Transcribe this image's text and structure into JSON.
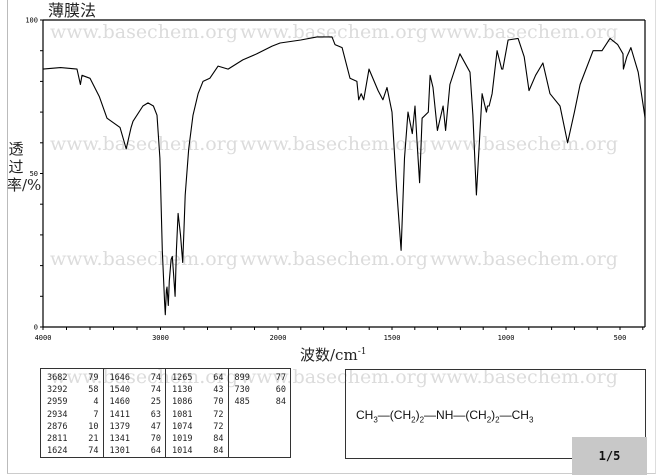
{
  "title": "薄膜法",
  "watermark": "www.basechem.org",
  "chart_data": {
    "type": "line",
    "title": "薄膜法",
    "xlabel": "波数/cm",
    "xlabel_sup": "-1",
    "ylabel": "透过率/%",
    "xlim": [
      4000,
      390
    ],
    "ylim": [
      0,
      100
    ],
    "x_scale_break": 2000,
    "x_tick_labels": [
      "4000",
      "3000",
      "2000",
      "1500",
      "1000",
      "500"
    ],
    "y_tick_labels": [
      "100",
      "50",
      "0"
    ],
    "grid": false,
    "line_color": "#000000",
    "points": [
      [
        4000,
        84
      ],
      [
        3850,
        84.5
      ],
      [
        3711,
        84
      ],
      [
        3682,
        79
      ],
      [
        3668,
        82
      ],
      [
        3600,
        81
      ],
      [
        3520,
        75
      ],
      [
        3455,
        68
      ],
      [
        3345,
        65
      ],
      [
        3292,
        58
      ],
      [
        3250,
        65
      ],
      [
        3234,
        67
      ],
      [
        3150,
        72
      ],
      [
        3106,
        73
      ],
      [
        3060,
        72
      ],
      [
        3030,
        69
      ],
      [
        3005,
        55
      ],
      [
        2985,
        25
      ],
      [
        2965,
        8
      ],
      [
        2959,
        4
      ],
      [
        2950,
        12
      ],
      [
        2945,
        13
      ],
      [
        2934,
        7
      ],
      [
        2925,
        15
      ],
      [
        2910,
        22
      ],
      [
        2900,
        23
      ],
      [
        2890,
        18
      ],
      [
        2876,
        10
      ],
      [
        2865,
        25
      ],
      [
        2850,
        37
      ],
      [
        2830,
        30
      ],
      [
        2811,
        21
      ],
      [
        2800,
        32
      ],
      [
        2790,
        43
      ],
      [
        2760,
        58
      ],
      [
        2723,
        69
      ],
      [
        2680,
        76
      ],
      [
        2638,
        80
      ],
      [
        2580,
        81
      ],
      [
        2510,
        85
      ],
      [
        2425,
        84
      ],
      [
        2300,
        87
      ],
      [
        2180,
        89
      ],
      [
        2050,
        91.5
      ],
      [
        1991,
        92.5
      ],
      [
        1900,
        93.5
      ],
      [
        1829,
        94.5
      ],
      [
        1763,
        94.5
      ],
      [
        1750,
        92
      ],
      [
        1719,
        91
      ],
      [
        1684,
        81
      ],
      [
        1654,
        80
      ],
      [
        1646,
        74
      ],
      [
        1635,
        76
      ],
      [
        1624,
        74
      ],
      [
        1601,
        84
      ],
      [
        1561,
        77
      ],
      [
        1540,
        74
      ],
      [
        1522,
        78
      ],
      [
        1500,
        70
      ],
      [
        1480,
        45
      ],
      [
        1460,
        25
      ],
      [
        1445,
        55
      ],
      [
        1430,
        70
      ],
      [
        1411,
        63
      ],
      [
        1399,
        72
      ],
      [
        1390,
        60
      ],
      [
        1379,
        47
      ],
      [
        1368,
        68
      ],
      [
        1341,
        70
      ],
      [
        1333,
        82
      ],
      [
        1320,
        78
      ],
      [
        1301,
        64
      ],
      [
        1276,
        72
      ],
      [
        1265,
        64
      ],
      [
        1246,
        79
      ],
      [
        1202,
        89
      ],
      [
        1158,
        83
      ],
      [
        1145,
        69
      ],
      [
        1130,
        43
      ],
      [
        1105,
        76
      ],
      [
        1086,
        70
      ],
      [
        1081,
        72
      ],
      [
        1074,
        72
      ],
      [
        1061,
        76
      ],
      [
        1039,
        90
      ],
      [
        1019,
        84
      ],
      [
        1014,
        84
      ],
      [
        991,
        93.5
      ],
      [
        947,
        94
      ],
      [
        920,
        88
      ],
      [
        899,
        77
      ],
      [
        870,
        82
      ],
      [
        838,
        86
      ],
      [
        807,
        76
      ],
      [
        763,
        72
      ],
      [
        730,
        60
      ],
      [
        700,
        70
      ],
      [
        675,
        79
      ],
      [
        618,
        90
      ],
      [
        579,
        90
      ],
      [
        544,
        94
      ],
      [
        510,
        92
      ],
      [
        487,
        89
      ],
      [
        485,
        84
      ],
      [
        470,
        88
      ],
      [
        452,
        91
      ],
      [
        420,
        83
      ],
      [
        390,
        68
      ]
    ]
  },
  "peak_table": [
    [
      [
        "3682",
        "79"
      ],
      [
        "3292",
        "58"
      ],
      [
        "2959",
        "4"
      ],
      [
        "2934",
        "7"
      ],
      [
        "2876",
        "10"
      ],
      [
        "2811",
        "21"
      ],
      [
        "1624",
        "74"
      ]
    ],
    [
      [
        "1646",
        "74"
      ],
      [
        "1540",
        "74"
      ],
      [
        "1460",
        "25"
      ],
      [
        "1411",
        "63"
      ],
      [
        "1379",
        "47"
      ],
      [
        "1341",
        "70"
      ],
      [
        "1301",
        "64"
      ]
    ],
    [
      [
        "1265",
        "64"
      ],
      [
        "1130",
        "43"
      ],
      [
        "1086",
        "70"
      ],
      [
        "1081",
        "72"
      ],
      [
        "1074",
        "72"
      ],
      [
        "1019",
        "84"
      ],
      [
        "1014",
        "84"
      ]
    ],
    [
      [
        "899",
        "77"
      ],
      [
        "730",
        "60"
      ],
      [
        "485",
        "84"
      ]
    ]
  ],
  "structure": {
    "parts": [
      "CH",
      "3",
      "—(CH",
      "2",
      ")",
      "2",
      "—NH—(CH",
      "2",
      ")",
      "2",
      "—CH",
      "3"
    ]
  },
  "pager": "1/5"
}
